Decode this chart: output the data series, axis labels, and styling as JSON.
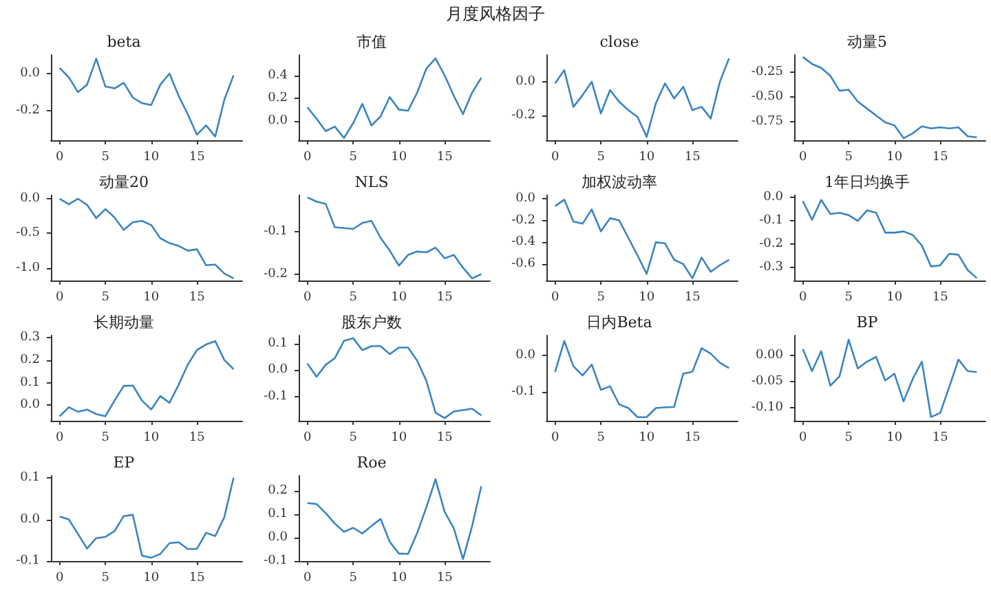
{
  "chart_data": [
    {
      "type": "other",
      "title": "月度风格因子"
    },
    {
      "type": "line",
      "title": "beta",
      "x": [
        0,
        1,
        2,
        3,
        4,
        5,
        6,
        7,
        8,
        9,
        10,
        11,
        12,
        13,
        14,
        15,
        16,
        17,
        18,
        19
      ],
      "series": [
        {
          "color": "#3b84c1",
          "values": [
            0.03,
            -0.02,
            -0.1,
            -0.06,
            0.08,
            -0.07,
            -0.08,
            -0.05,
            -0.13,
            -0.16,
            -0.17,
            -0.06,
            0.0,
            -0.12,
            -0.22,
            -0.33,
            -0.28,
            -0.34,
            -0.14,
            -0.01
          ]
        }
      ],
      "xlim": [
        -0.95,
        19.95
      ],
      "xticks": [
        0,
        5,
        10,
        15
      ],
      "ylim": [
        -0.36,
        0.1
      ],
      "yticks": [
        {
          "value": 0,
          "label": "0.0"
        },
        -0.2
      ]
    },
    {
      "type": "line",
      "title": "市值",
      "x": [
        0,
        1,
        2,
        3,
        4,
        5,
        6,
        7,
        8,
        9,
        10,
        11,
        12,
        13,
        14,
        15,
        16,
        17,
        18,
        19
      ],
      "series": [
        {
          "color": "#3b84c1",
          "values": [
            0.12,
            0.02,
            -0.09,
            -0.05,
            -0.15,
            -0.02,
            0.15,
            -0.04,
            0.04,
            0.21,
            0.1,
            0.09,
            0.25,
            0.46,
            0.55,
            0.4,
            0.22,
            0.06,
            0.25,
            0.38
          ]
        }
      ],
      "xlim": [
        -0.95,
        19.95
      ],
      "xticks": [
        0,
        5,
        10,
        15
      ],
      "ylim": [
        -0.17,
        0.58
      ],
      "yticks": [
        {
          "value": 0,
          "label": "0.0"
        },
        0.2,
        0.4
      ]
    },
    {
      "type": "line",
      "title": "close",
      "x": [
        0,
        1,
        2,
        3,
        4,
        5,
        6,
        7,
        8,
        9,
        10,
        11,
        12,
        13,
        14,
        15,
        16,
        17,
        18,
        19
      ],
      "series": [
        {
          "color": "#3b84c1",
          "values": [
            -0.01,
            0.07,
            -0.15,
            -0.08,
            0.0,
            -0.19,
            -0.05,
            -0.12,
            -0.17,
            -0.21,
            -0.33,
            -0.13,
            -0.01,
            -0.1,
            -0.03,
            -0.17,
            -0.15,
            -0.22,
            0.0,
            0.14
          ]
        }
      ],
      "xlim": [
        -0.95,
        19.95
      ],
      "xticks": [
        0,
        5,
        10,
        15
      ],
      "ylim": [
        -0.35,
        0.16
      ],
      "yticks": [
        -0.2,
        {
          "value": 0,
          "label": "0.0"
        }
      ]
    },
    {
      "type": "line",
      "title": "动量5",
      "x": [
        0,
        1,
        2,
        3,
        4,
        5,
        6,
        7,
        8,
        9,
        10,
        11,
        12,
        13,
        14,
        15,
        16,
        17,
        18,
        19
      ],
      "series": [
        {
          "color": "#3b84c1",
          "values": [
            -0.1,
            -0.17,
            -0.21,
            -0.29,
            -0.44,
            -0.43,
            -0.55,
            -0.62,
            -0.69,
            -0.76,
            -0.79,
            -0.92,
            -0.87,
            -0.8,
            -0.82,
            -0.81,
            -0.82,
            -0.81,
            -0.9,
            -0.91
          ]
        }
      ],
      "xlim": [
        -0.95,
        19.95
      ],
      "xticks": [
        0,
        5,
        10,
        15
      ],
      "ylim": [
        -0.94,
        -0.08
      ],
      "yticks": [
        {
          "value": -0.75,
          "label": "-0.75"
        },
        {
          "value": -0.5,
          "label": "-0.50"
        },
        {
          "value": -0.25,
          "label": "-0.25"
        }
      ]
    },
    {
      "type": "line",
      "title": "动量20",
      "x": [
        0,
        1,
        2,
        3,
        4,
        5,
        6,
        7,
        8,
        9,
        10,
        11,
        12,
        13,
        14,
        15,
        16,
        17,
        18,
        19
      ],
      "series": [
        {
          "color": "#3b84c1",
          "values": [
            0.0,
            -0.08,
            0.0,
            -0.09,
            -0.28,
            -0.15,
            -0.27,
            -0.45,
            -0.34,
            -0.32,
            -0.38,
            -0.57,
            -0.64,
            -0.68,
            -0.75,
            -0.73,
            -0.96,
            -0.95,
            -1.08,
            -1.15
          ]
        }
      ],
      "xlim": [
        -0.95,
        19.95
      ],
      "xticks": [
        0,
        5,
        10,
        15
      ],
      "ylim": [
        -1.18,
        0.05
      ],
      "yticks": [
        {
          "value": -1,
          "label": "-1.0"
        },
        -0.5,
        {
          "value": 0,
          "label": "0.0"
        }
      ]
    },
    {
      "type": "line",
      "title": "NLS",
      "x": [
        0,
        1,
        2,
        3,
        4,
        5,
        6,
        7,
        8,
        9,
        10,
        11,
        12,
        13,
        14,
        15,
        16,
        17,
        18,
        19
      ],
      "series": [
        {
          "color": "#3b84c1",
          "values": [
            -0.02,
            -0.03,
            -0.035,
            -0.09,
            -0.092,
            -0.094,
            -0.08,
            -0.075,
            -0.115,
            -0.145,
            -0.18,
            -0.155,
            -0.147,
            -0.149,
            -0.138,
            -0.163,
            -0.155,
            -0.185,
            -0.21,
            -0.2
          ]
        }
      ],
      "xlim": [
        -0.95,
        19.95
      ],
      "xticks": [
        0,
        5,
        10,
        15
      ],
      "ylim": [
        -0.215,
        -0.015
      ],
      "yticks": [
        -0.2,
        -0.1
      ]
    },
    {
      "type": "line",
      "title": "加权波动率",
      "x": [
        0,
        1,
        2,
        3,
        4,
        5,
        6,
        7,
        8,
        9,
        10,
        11,
        12,
        13,
        14,
        15,
        16,
        17,
        18,
        19
      ],
      "series": [
        {
          "color": "#3b84c1",
          "values": [
            -0.07,
            -0.01,
            -0.21,
            -0.23,
            -0.1,
            -0.3,
            -0.18,
            -0.2,
            -0.36,
            -0.52,
            -0.69,
            -0.4,
            -0.41,
            -0.56,
            -0.6,
            -0.73,
            -0.54,
            -0.67,
            -0.61,
            -0.56
          ]
        }
      ],
      "xlim": [
        -0.95,
        19.95
      ],
      "xticks": [
        0,
        5,
        10,
        15
      ],
      "ylim": [
        -0.75,
        0.03
      ],
      "yticks": [
        -0.6,
        -0.4,
        -0.2,
        {
          "value": 0,
          "label": "0.0"
        }
      ]
    },
    {
      "type": "line",
      "title": "1年日均换手",
      "x": [
        0,
        1,
        2,
        3,
        4,
        5,
        6,
        7,
        8,
        9,
        10,
        11,
        12,
        13,
        14,
        15,
        16,
        17,
        18,
        19
      ],
      "series": [
        {
          "color": "#3b84c1",
          "values": [
            -0.015,
            -0.095,
            -0.01,
            -0.07,
            -0.065,
            -0.075,
            -0.1,
            -0.055,
            -0.065,
            -0.15,
            -0.15,
            -0.145,
            -0.16,
            -0.205,
            -0.295,
            -0.29,
            -0.24,
            -0.245,
            -0.31,
            -0.345
          ]
        }
      ],
      "xlim": [
        -0.95,
        19.95
      ],
      "xticks": [
        0,
        5,
        10,
        15
      ],
      "ylim": [
        -0.355,
        0.01
      ],
      "yticks": [
        -0.3,
        -0.2,
        -0.1,
        {
          "value": 0,
          "label": "0.0"
        }
      ]
    },
    {
      "type": "line",
      "title": "长期动量",
      "x": [
        0,
        1,
        2,
        3,
        4,
        5,
        6,
        7,
        8,
        9,
        10,
        11,
        12,
        13,
        14,
        15,
        16,
        17,
        18,
        19
      ],
      "series": [
        {
          "color": "#3b84c1",
          "values": [
            -0.05,
            -0.01,
            -0.03,
            -0.02,
            -0.04,
            -0.05,
            0.02,
            0.085,
            0.087,
            0.02,
            -0.02,
            0.04,
            0.01,
            0.09,
            0.18,
            0.245,
            0.27,
            0.285,
            0.2,
            0.16
          ]
        }
      ],
      "xlim": [
        -0.95,
        19.95
      ],
      "xticks": [
        0,
        5,
        10,
        15
      ],
      "ylim": [
        -0.07,
        0.31
      ],
      "yticks": [
        {
          "value": 0,
          "label": "0.0"
        },
        0.1,
        0.2,
        0.3
      ]
    },
    {
      "type": "line",
      "title": "股东户数",
      "x": [
        0,
        1,
        2,
        3,
        4,
        5,
        6,
        7,
        8,
        9,
        10,
        11,
        12,
        13,
        14,
        15,
        16,
        17,
        18,
        19
      ],
      "series": [
        {
          "color": "#3b84c1",
          "values": [
            0.025,
            -0.025,
            0.02,
            0.045,
            0.11,
            0.12,
            0.075,
            0.09,
            0.09,
            0.06,
            0.085,
            0.085,
            0.035,
            -0.04,
            -0.16,
            -0.18,
            -0.155,
            -0.15,
            -0.145,
            -0.17
          ]
        }
      ],
      "xlim": [
        -0.95,
        19.95
      ],
      "xticks": [
        0,
        5,
        10,
        15
      ],
      "ylim": [
        -0.19,
        0.13
      ],
      "yticks": [
        -0.1,
        {
          "value": 0,
          "label": "0.0"
        },
        0.1
      ]
    },
    {
      "type": "line",
      "title": "日内Beta",
      "x": [
        0,
        1,
        2,
        3,
        4,
        5,
        6,
        7,
        8,
        9,
        10,
        11,
        12,
        13,
        14,
        15,
        16,
        17,
        18,
        19
      ],
      "series": [
        {
          "color": "#3b84c1",
          "values": [
            -0.045,
            0.04,
            -0.03,
            -0.055,
            -0.025,
            -0.095,
            -0.085,
            -0.135,
            -0.145,
            -0.17,
            -0.17,
            -0.145,
            -0.143,
            -0.142,
            -0.05,
            -0.045,
            0.02,
            0.005,
            -0.02,
            -0.035
          ]
        }
      ],
      "xlim": [
        -0.95,
        19.95
      ],
      "xticks": [
        0,
        5,
        10,
        15
      ],
      "ylim": [
        -0.18,
        0.055
      ],
      "yticks": [
        -0.1,
        {
          "value": 0,
          "label": "0.0"
        }
      ]
    },
    {
      "type": "line",
      "title": "BP",
      "x": [
        0,
        1,
        2,
        3,
        4,
        5,
        6,
        7,
        8,
        9,
        10,
        11,
        12,
        13,
        14,
        15,
        16,
        17,
        18,
        19
      ],
      "series": [
        {
          "color": "#3b84c1",
          "values": [
            0.012,
            -0.03,
            0.008,
            -0.058,
            -0.04,
            0.03,
            -0.025,
            -0.012,
            -0.003,
            -0.048,
            -0.035,
            -0.088,
            -0.045,
            -0.012,
            -0.118,
            -0.11,
            -0.06,
            -0.008,
            -0.03,
            -0.032
          ]
        }
      ],
      "xlim": [
        -0.95,
        19.95
      ],
      "xticks": [
        0,
        5,
        10,
        15
      ],
      "ylim": [
        -0.125,
        0.038
      ],
      "yticks": [
        {
          "value": -0.1,
          "label": "-0.10"
        },
        -0.05,
        {
          "value": 0,
          "label": "0.00"
        }
      ]
    },
    {
      "type": "line",
      "title": "EP",
      "x": [
        0,
        1,
        2,
        3,
        4,
        5,
        6,
        7,
        8,
        9,
        10,
        11,
        12,
        13,
        14,
        15,
        16,
        17,
        18,
        19
      ],
      "series": [
        {
          "color": "#3b84c1",
          "values": [
            0.007,
            0.0,
            -0.035,
            -0.07,
            -0.045,
            -0.042,
            -0.028,
            0.008,
            0.011,
            -0.087,
            -0.092,
            -0.083,
            -0.057,
            -0.055,
            -0.071,
            -0.071,
            -0.032,
            -0.04,
            0.006,
            0.1
          ]
        }
      ],
      "xlim": [
        -0.95,
        19.95
      ],
      "xticks": [
        0,
        5,
        10,
        15
      ],
      "ylim": [
        -0.1,
        0.105
      ],
      "yticks": [
        -0.1,
        {
          "value": 0,
          "label": "0.0"
        },
        0.1
      ]
    },
    {
      "type": "line",
      "title": "Roe",
      "x": [
        0,
        1,
        2,
        3,
        4,
        5,
        6,
        7,
        8,
        9,
        10,
        11,
        12,
        13,
        14,
        15,
        16,
        17,
        18,
        19
      ],
      "series": [
        {
          "color": "#3b84c1",
          "values": [
            0.148,
            0.144,
            0.105,
            0.06,
            0.025,
            0.042,
            0.018,
            0.05,
            0.08,
            -0.018,
            -0.068,
            -0.07,
            0.02,
            0.13,
            0.25,
            0.11,
            0.04,
            -0.092,
            0.05,
            0.22
          ]
        }
      ],
      "xlim": [
        -0.95,
        19.95
      ],
      "xticks": [
        0,
        5,
        10,
        15
      ],
      "ylim": [
        -0.1,
        0.265
      ],
      "yticks": [
        -0.1,
        {
          "value": 0,
          "label": "0.0"
        },
        0.1,
        0.2
      ]
    }
  ]
}
